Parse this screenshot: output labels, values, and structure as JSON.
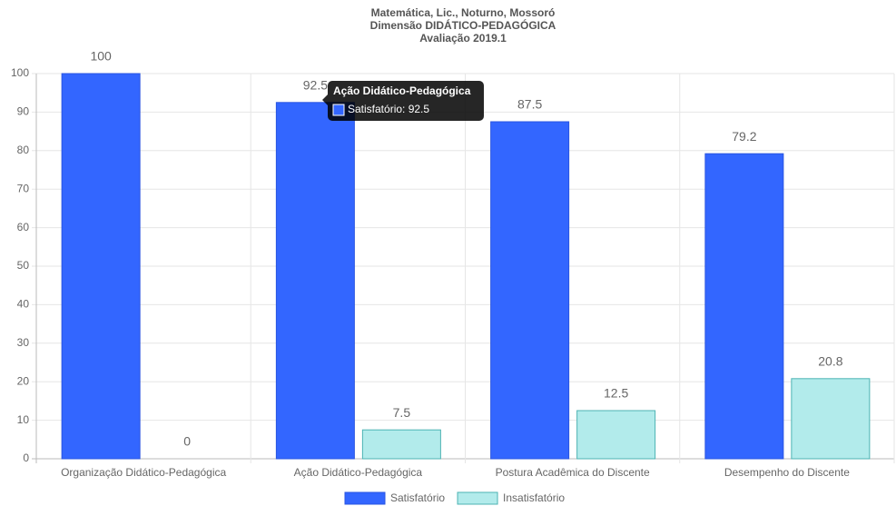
{
  "chart_data": {
    "type": "bar",
    "title": [
      "Matemática, Lic., Noturno, Mossoró",
      "Dimensão DIDÁTICO-PEDAGÓGICA",
      "Avaliação 2019.1"
    ],
    "categories": [
      "Organização Didático-Pedagógica",
      "Ação Didático-Pedagógica",
      "Postura Acadêmica do Discente",
      "Desempenho do Discente"
    ],
    "series": [
      {
        "name": "Satisfatório",
        "color": "#3366ff",
        "values": [
          100,
          92.5,
          87.5,
          79.2
        ]
      },
      {
        "name": "Insatisfatório",
        "color": "#b2ebeb",
        "values": [
          0,
          7.5,
          12.5,
          20.8
        ]
      }
    ],
    "ylim": [
      0,
      100
    ],
    "yticks": [
      0,
      10,
      20,
      30,
      40,
      50,
      60,
      70,
      80,
      90,
      100
    ],
    "grid": true,
    "legend": "bottom",
    "tooltip": {
      "title": "Ação Didático-Pedagógica",
      "text": "Satisfatório: 92.5"
    }
  }
}
